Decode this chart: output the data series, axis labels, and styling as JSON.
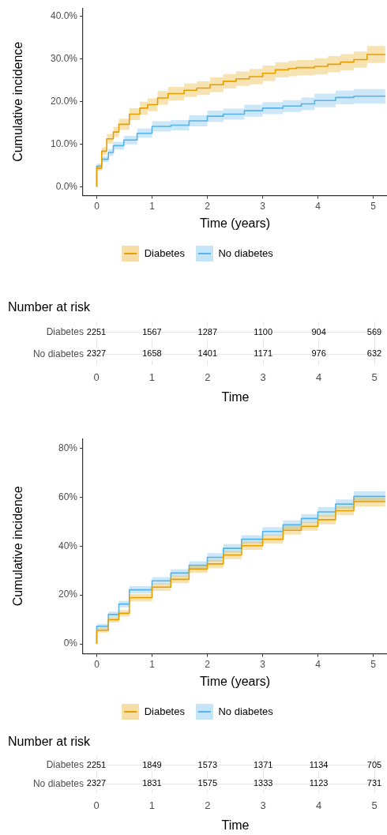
{
  "chart_data": [
    {
      "type": "step",
      "xlabel": "Time (years)",
      "ylabel": "Cumulative incidence",
      "legend": "bottom",
      "xlim": [
        -0.25,
        5.25
      ],
      "xticks": [
        0,
        1,
        2,
        3,
        4,
        5
      ],
      "ylim": [
        -2,
        42
      ],
      "yticks": [
        {
          "value": 0,
          "label": "0.0%"
        },
        {
          "value": 10,
          "label": "10.0%"
        },
        {
          "value": 20,
          "label": "20.0%"
        },
        {
          "value": 30,
          "label": "30.0%"
        },
        {
          "value": 40,
          "label": "40.0%"
        }
      ],
      "series": [
        {
          "name": "Diabetes",
          "color": "#e69f00",
          "x": [
            0,
            0.09,
            0.18,
            0.3,
            0.4,
            0.59,
            0.78,
            0.92,
            1.1,
            1.29,
            1.58,
            1.81,
            2.05,
            2.29,
            2.52,
            2.76,
            3.0,
            3.23,
            3.47,
            3.61,
            3.94,
            4.18,
            4.41,
            4.65,
            4.89,
            5.22
          ],
          "values": [
            0,
            4.4,
            8.4,
            11.3,
            12.9,
            14.7,
            17.1,
            18.5,
            19.3,
            20.9,
            21.9,
            22.7,
            23.2,
            24.0,
            24.8,
            25.4,
            25.9,
            26.7,
            27.5,
            27.8,
            28.0,
            28.3,
            28.8,
            29.3,
            29.9,
            31.1
          ],
          "lower": [
            0,
            3.8,
            7.5,
            10.2,
            11.7,
            13.4,
            15.7,
            17.0,
            17.8,
            19.3,
            20.3,
            21.1,
            21.6,
            22.3,
            23.1,
            23.7,
            24.1,
            24.9,
            25.7,
            26.0,
            26.2,
            26.4,
            26.9,
            27.4,
            28.0,
            29.1
          ],
          "upper": [
            0,
            5.0,
            9.3,
            12.4,
            14.1,
            16.0,
            18.5,
            20.0,
            20.8,
            22.5,
            23.5,
            24.3,
            24.8,
            25.7,
            26.5,
            27.1,
            27.7,
            28.5,
            29.3,
            29.6,
            29.8,
            30.2,
            30.7,
            31.2,
            31.8,
            33.1
          ]
        },
        {
          "name": "No diabetes",
          "color": "#56b4e9",
          "x": [
            0,
            0.09,
            0.21,
            0.3,
            0.49,
            0.73,
            1.0,
            1.34,
            1.67,
            2.0,
            2.29,
            2.67,
            3.0,
            3.37,
            3.7,
            3.94,
            4.32,
            4.65,
            5.22
          ],
          "values": [
            0,
            4.9,
            6.5,
            8.1,
            9.7,
            11.0,
            12.6,
            14.2,
            14.5,
            15.5,
            16.6,
            17.1,
            17.9,
            18.5,
            19.0,
            19.5,
            20.3,
            21.0,
            21.3
          ],
          "lower": [
            0,
            4.3,
            5.8,
            7.3,
            8.8,
            10.0,
            11.5,
            13.0,
            13.3,
            14.2,
            15.3,
            15.8,
            16.5,
            17.1,
            17.6,
            18.0,
            18.7,
            19.4,
            19.6
          ],
          "upper": [
            0,
            5.5,
            7.2,
            8.9,
            10.6,
            12.0,
            13.7,
            15.4,
            15.7,
            16.8,
            17.9,
            18.4,
            19.3,
            19.9,
            20.4,
            21.0,
            21.9,
            22.6,
            23.0
          ]
        }
      ]
    },
    {
      "type": "heatmap",
      "title": "Number at risk",
      "xlabel": "Time",
      "categories": [
        "0",
        "1",
        "2",
        "3",
        "4",
        "5"
      ],
      "y_categories": [
        "Diabetes",
        "No diabetes"
      ],
      "data_labels": true,
      "grid": true,
      "cells": [
        [
          2251,
          1567,
          1287,
          1100,
          904,
          569
        ],
        [
          2327,
          1658,
          1401,
          1171,
          976,
          632
        ]
      ]
    },
    {
      "type": "step",
      "xlabel": "Time (years)",
      "ylabel": "Cumulative incidence",
      "legend": "bottom",
      "xlim": [
        -0.25,
        5.25
      ],
      "xticks": [
        0,
        1,
        2,
        3,
        4,
        5
      ],
      "ylim": [
        -4,
        84
      ],
      "yticks": [
        {
          "value": 0,
          "label": "0%"
        },
        {
          "value": 20,
          "label": "20%"
        },
        {
          "value": 40,
          "label": "40%"
        },
        {
          "value": 60,
          "label": "60%"
        },
        {
          "value": 80,
          "label": "80%"
        }
      ],
      "series": [
        {
          "name": "Diabetes",
          "color": "#e69f00",
          "x": [
            0,
            0.21,
            0.4,
            0.59,
            1.0,
            1.34,
            1.67,
            2.0,
            2.29,
            2.62,
            3.0,
            3.37,
            3.7,
            4.0,
            4.32,
            4.65,
            5.22
          ],
          "values": [
            0,
            5.6,
            9.9,
            12.5,
            18.9,
            23.2,
            26.4,
            30.6,
            32.7,
            36.4,
            40.2,
            42.8,
            46.5,
            48.1,
            50.8,
            54.5,
            58.2
          ],
          "lower": [
            0,
            4.6,
            8.7,
            11.2,
            17.4,
            21.7,
            24.8,
            29.0,
            31.0,
            34.7,
            38.5,
            41.0,
            44.7,
            46.3,
            48.9,
            52.6,
            56.2
          ],
          "upper": [
            0,
            6.6,
            11.1,
            13.8,
            20.4,
            24.7,
            28.0,
            32.2,
            34.4,
            38.1,
            41.9,
            44.6,
            48.3,
            49.9,
            52.7,
            56.4,
            60.2
          ]
        },
        {
          "name": "No diabetes",
          "color": "#56b4e9",
          "x": [
            0,
            0.21,
            0.4,
            0.59,
            1.0,
            1.34,
            1.67,
            2.0,
            2.29,
            2.62,
            3.0,
            3.37,
            3.7,
            4.0,
            4.32,
            4.65,
            5.22
          ],
          "values": [
            0,
            7.2,
            12.0,
            16.3,
            22.1,
            25.8,
            29.0,
            32.2,
            35.4,
            39.1,
            42.8,
            46.0,
            48.7,
            51.3,
            54.0,
            57.2,
            60.4
          ],
          "lower": [
            0,
            6.2,
            10.8,
            15.0,
            20.6,
            24.3,
            27.4,
            30.6,
            33.7,
            37.4,
            41.1,
            44.2,
            46.9,
            49.5,
            52.1,
            55.3,
            58.4
          ],
          "upper": [
            0,
            8.2,
            13.2,
            17.6,
            23.6,
            27.3,
            30.6,
            33.8,
            37.1,
            40.8,
            44.5,
            47.8,
            50.5,
            53.1,
            55.9,
            59.1,
            62.4
          ]
        }
      ]
    },
    {
      "type": "heatmap",
      "title": "Number at risk",
      "xlabel": "Time",
      "categories": [
        "0",
        "1",
        "2",
        "3",
        "4",
        "5"
      ],
      "y_categories": [
        "Diabetes",
        "No diabetes"
      ],
      "data_labels": true,
      "grid": true,
      "cells": [
        [
          2251,
          1849,
          1573,
          1371,
          1134,
          705
        ],
        [
          2327,
          1831,
          1575,
          1333,
          1123,
          731
        ]
      ]
    }
  ]
}
